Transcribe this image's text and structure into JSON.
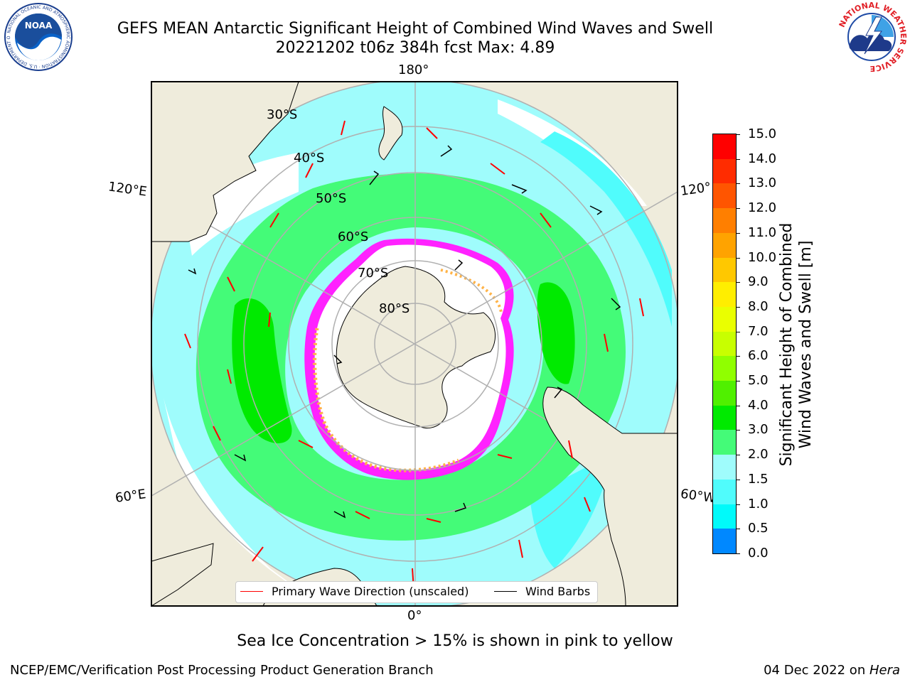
{
  "title": {
    "line1": "GEFS MEAN Antarctic Significant Height of Combined Wind Waves and Swell",
    "line2": "20221202 t06z 384h fcst   Max: 4.89"
  },
  "logos": {
    "noaa": {
      "center_text": "NOAA",
      "ring_text": "NATIONAL OCEANIC AND ATMOSPHERIC ADMINISTRATION · U.S. DEPARTMENT OF COMMERCE"
    },
    "nws": {
      "ring_text": "NATIONAL WEATHER SERVICE"
    }
  },
  "map": {
    "projection": "south-polar-stereographic",
    "longitude_labels": {
      "top": "180°",
      "bottom": "0°",
      "left_upper": "120°E",
      "left_lower": "60°E",
      "right_upper": "120°",
      "right_lower": "60°W"
    },
    "latitude_labels": [
      "30°S",
      "40°S",
      "50°S",
      "60°S",
      "70°S",
      "80°S"
    ],
    "colors": {
      "land": "#efecdc",
      "ocean_low": "#9ffcfc",
      "ocean_mid": "#50fcfc",
      "ocean_high": "#44fb78",
      "ocean_peak": "#00ea00",
      "ice": "#ffffff",
      "ice_edge": "#ff22ff",
      "ice_yellow": "#ffb347",
      "grid": "#b0b0b0",
      "arrow": "#ff0000",
      "barb": "#000000"
    }
  },
  "legend": {
    "primary_wave": "Primary Wave Direction (unscaled)",
    "wind_barbs": "Wind Barbs"
  },
  "colorbar": {
    "label_line1": "Significant Height of Combined",
    "label_line2": "Wind Waves and Swell [m]",
    "ticks": [
      "15.0",
      "14.0",
      "13.0",
      "12.0",
      "11.0",
      "10.0",
      "9.0",
      "8.0",
      "7.0",
      "6.0",
      "5.0",
      "4.0",
      "3.0",
      "2.0",
      "1.5",
      "1.0",
      "0.5",
      "0.0"
    ],
    "colors": [
      "#ff0000",
      "#ff2c00",
      "#ff5500",
      "#ff7f00",
      "#ffa300",
      "#ffc800",
      "#ffee00",
      "#eaff00",
      "#c8ff00",
      "#90ff00",
      "#50f000",
      "#00ea00",
      "#44fb78",
      "#9ffcfc",
      "#50fcfc",
      "#00fafa",
      "#0088ff",
      "#0044ff",
      "#0000ff"
    ]
  },
  "notes": {
    "ice": "Sea Ice Concentration > 15% is shown in pink to yellow"
  },
  "footer": {
    "left": "NCEP/EMC/Verification Post Processing Product Generation Branch",
    "right_prefix": "04 Dec 2022 on ",
    "right_host": "Hera"
  }
}
